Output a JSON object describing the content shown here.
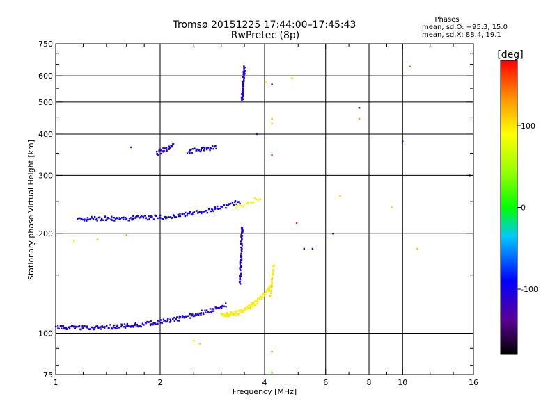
{
  "chart_data": {
    "type": "scatter",
    "title": "Tromsø 20151225 17:44:00–17:45:43",
    "subtitle": "RwPretec (8p)",
    "xlabel": "Frequency [MHz]",
    "ylabel": "Stationary phase Virtual Height [km]",
    "x_scale": "log",
    "y_scale": "log",
    "xlim": [
      1,
      16
    ],
    "ylim": [
      75,
      750
    ],
    "x_ticks": [
      1,
      2,
      4,
      6,
      8,
      10,
      16
    ],
    "y_ticks": [
      75,
      100,
      200,
      300,
      400,
      500,
      600,
      750
    ],
    "y_minor_ticks": [
      80,
      90,
      150,
      250,
      350,
      450,
      550,
      650,
      700
    ],
    "x_minor_ticks": [
      1.2,
      1.4,
      1.6,
      1.8,
      2.5,
      3,
      3.5,
      5,
      7,
      9,
      12,
      14
    ],
    "x_grid": [
      2,
      4,
      6,
      8,
      10
    ],
    "y_grid": [
      100,
      200,
      300,
      400,
      500,
      600
    ],
    "grid": true,
    "colorbar": {
      "unit": "[deg]",
      "range": [
        -180,
        180
      ],
      "ticks": [
        100,
        0,
        -100
      ]
    },
    "stats_header": "Phases",
    "stats_lines": [
      "mean, sd,O:  −95.3, 15.0",
      "mean, sd,X:  88.4, 19.1"
    ],
    "traces": [
      {
        "name": "lower-O",
        "x0": 1.0,
        "x1": 3.1,
        "h0": 104,
        "h1": 122,
        "p0": -110,
        "p1": -100,
        "n": 200,
        "curve": 3.0,
        "jitter": 0.01
      },
      {
        "name": "lower-X",
        "x0": 3.0,
        "x1": 4.2,
        "h0": 114,
        "h1": 140,
        "p0": 95,
        "p1": 100,
        "n": 100,
        "curve": 2.5,
        "jitter": 0.01
      },
      {
        "name": "mid-O",
        "x0": 1.15,
        "x1": 3.4,
        "h0": 222,
        "h1": 250,
        "p0": -100,
        "p1": -95,
        "n": 160,
        "curve": 3.5,
        "jitter": 0.01
      },
      {
        "name": "mid-X",
        "x0": 3.3,
        "x1": 3.9,
        "h0": 240,
        "h1": 255,
        "p0": 80,
        "p1": 100,
        "n": 20,
        "curve": 1.0,
        "jitter": 0.01
      },
      {
        "name": "upper-O-a",
        "x0": 1.95,
        "x1": 2.2,
        "h0": 350,
        "h1": 370,
        "p0": -120,
        "p1": -100,
        "n": 30,
        "curve": 1.0,
        "jitter": 0.02
      },
      {
        "name": "upper-O-b",
        "x0": 2.4,
        "x1": 2.9,
        "h0": 355,
        "h1": 365,
        "p0": -100,
        "p1": -95,
        "n": 30,
        "curve": 1.0,
        "jitter": 0.01
      },
      {
        "name": "E-cusp",
        "x0": 3.4,
        "x1": 3.45,
        "h0": 140,
        "h1": 210,
        "p0": -120,
        "p1": -95,
        "n": 60,
        "curve": 1.0,
        "jitter": 0.01
      },
      {
        "name": "F-cusp",
        "x0": 3.45,
        "x1": 3.5,
        "h0": 505,
        "h1": 640,
        "p0": -120,
        "p1": -100,
        "n": 60,
        "curve": 1.0,
        "jitter": 0.01
      },
      {
        "name": "X-cusp",
        "x0": 4.15,
        "x1": 4.25,
        "h0": 128,
        "h1": 160,
        "p0": 95,
        "p1": 110,
        "n": 25,
        "curve": 1.0,
        "jitter": 0.01
      }
    ],
    "scatter_points": [
      {
        "x": 1.13,
        "y": 190,
        "phase": 100
      },
      {
        "x": 1.32,
        "y": 192,
        "phase": 110
      },
      {
        "x": 1.6,
        "y": 198,
        "phase": 30
      },
      {
        "x": 2.5,
        "y": 95,
        "phase": 100
      },
      {
        "x": 2.6,
        "y": 93,
        "phase": 110
      },
      {
        "x": 3.8,
        "y": 400,
        "phase": -110
      },
      {
        "x": 4.05,
        "y": 575,
        "phase": 100
      },
      {
        "x": 4.2,
        "y": 565,
        "phase": -100
      },
      {
        "x": 4.8,
        "y": 590,
        "phase": 110
      },
      {
        "x": 4.2,
        "y": 445,
        "phase": 120
      },
      {
        "x": 4.2,
        "y": 430,
        "phase": 110
      },
      {
        "x": 4.2,
        "y": 345,
        "phase": 170
      },
      {
        "x": 4.95,
        "y": 215,
        "phase": 170
      },
      {
        "x": 5.2,
        "y": 180,
        "phase": -100
      },
      {
        "x": 5.5,
        "y": 180,
        "phase": -100
      },
      {
        "x": 6.3,
        "y": 200,
        "phase": -100
      },
      {
        "x": 6.6,
        "y": 260,
        "phase": 110
      },
      {
        "x": 7.5,
        "y": 480,
        "phase": -100
      },
      {
        "x": 7.5,
        "y": 445,
        "phase": 130
      },
      {
        "x": 9.3,
        "y": 240,
        "phase": 110
      },
      {
        "x": 10.0,
        "y": 380,
        "phase": -120
      },
      {
        "x": 10.5,
        "y": 640,
        "phase": 150
      },
      {
        "x": 11.0,
        "y": 180,
        "phase": 110
      },
      {
        "x": 15.6,
        "y": 300,
        "phase": -110
      },
      {
        "x": 4.2,
        "y": 88,
        "phase": 20
      },
      {
        "x": 4.2,
        "y": 76,
        "phase": 20
      },
      {
        "x": 1.65,
        "y": 365,
        "phase": -100
      }
    ]
  }
}
